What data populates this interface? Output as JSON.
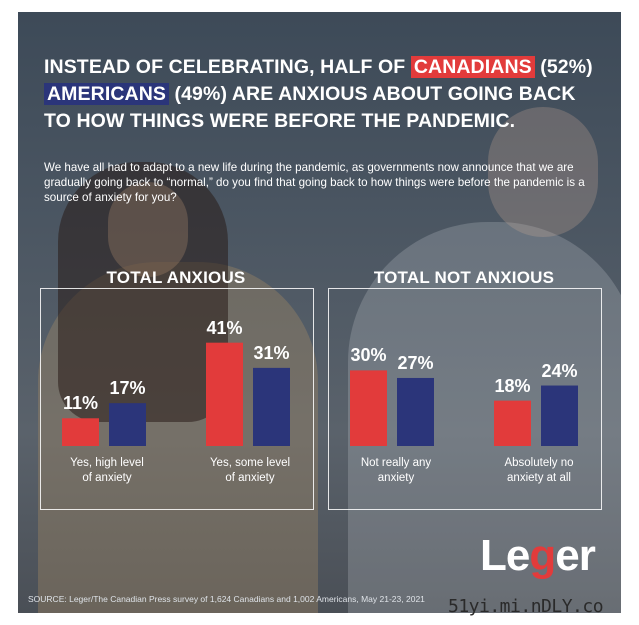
{
  "title": {
    "part1": "INSTEAD OF CELEBRATING, HALF OF ",
    "canadians": "CANADIANS",
    "part2": " (52%)",
    "americans": "AMERICANS",
    "part3": " (49%) ARE ANXIOUS ABOUT GOING BACK TO HOW THINGS WERE BEFORE THE PANDEMIC."
  },
  "question": "We have all had to adapt to a new life during the pandemic, as governments now announce that we are gradually going back to “normal,” do you find that going back to how things were before the pandemic is a source of anxiety for you?",
  "groups": {
    "anxious": "TOTAL ANXIOUS",
    "not_anxious": "TOTAL NOT ANXIOUS"
  },
  "colors": {
    "canada": "#e23b3b",
    "usa": "#2b357a"
  },
  "chart_data": {
    "type": "bar",
    "categories": [
      "Yes, high level of anxiety",
      "Yes, some level of anxiety",
      "Not really any anxiety",
      "Absolutely no anxiety at all"
    ],
    "category_lines": [
      [
        "Yes, high level",
        "of anxiety"
      ],
      [
        "Yes, some level",
        "of anxiety"
      ],
      [
        "Not really any",
        "anxiety"
      ],
      [
        "Absolutely no",
        "anxiety at all"
      ]
    ],
    "series": [
      {
        "values": [
          11,
          41,
          30,
          18
        ],
        "labels": [
          "11%",
          "41%",
          "30%",
          "18%"
        ],
        "color": "#e23b3b"
      },
      {
        "values": [
          17,
          31,
          27,
          24
        ],
        "labels": [
          "17%",
          "31%",
          "27%",
          "24%"
        ],
        "color": "#2b357a"
      }
    ],
    "ylim": [
      0,
      45
    ]
  },
  "logo": {
    "pre": "Le",
    "g": "g",
    "post": "er"
  },
  "source": "SOURCE: Leger/The Canadian Press survey of 1,624 Canadians and 1,002 Americans, May 21-23, 2021",
  "watermark": "51yi.mi.nDLY.co"
}
